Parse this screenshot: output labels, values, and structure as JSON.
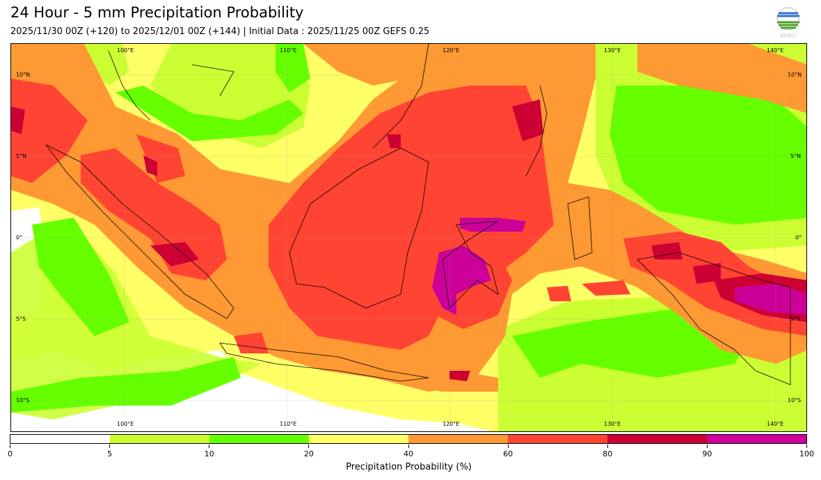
{
  "header": {
    "title": "24 Hour - 5 mm Precipitation Probability",
    "subtitle": "2025/11/30 00Z (+120) to 2025/12/01 00Z (+144) | Initial Data : 2025/11/25 00Z GEFS 0.25",
    "logo_text": "BMKG"
  },
  "map": {
    "lon_labels": [
      "100°E",
      "110°E",
      "120°E",
      "130°E",
      "140°E"
    ],
    "lat_labels": [
      "10°N",
      "5°N",
      "0°",
      "5°S",
      "10°S"
    ]
  },
  "colorbar": {
    "label": "Precipitation Probability (%)",
    "ticks": [
      "0",
      "5",
      "10",
      "20",
      "40",
      "60",
      "80",
      "90",
      "100"
    ],
    "colors": [
      "#ffffff",
      "#ccff33",
      "#66ff00",
      "#ffff66",
      "#ff9933",
      "#ff4433",
      "#cc0033",
      "#cc0099"
    ]
  }
}
